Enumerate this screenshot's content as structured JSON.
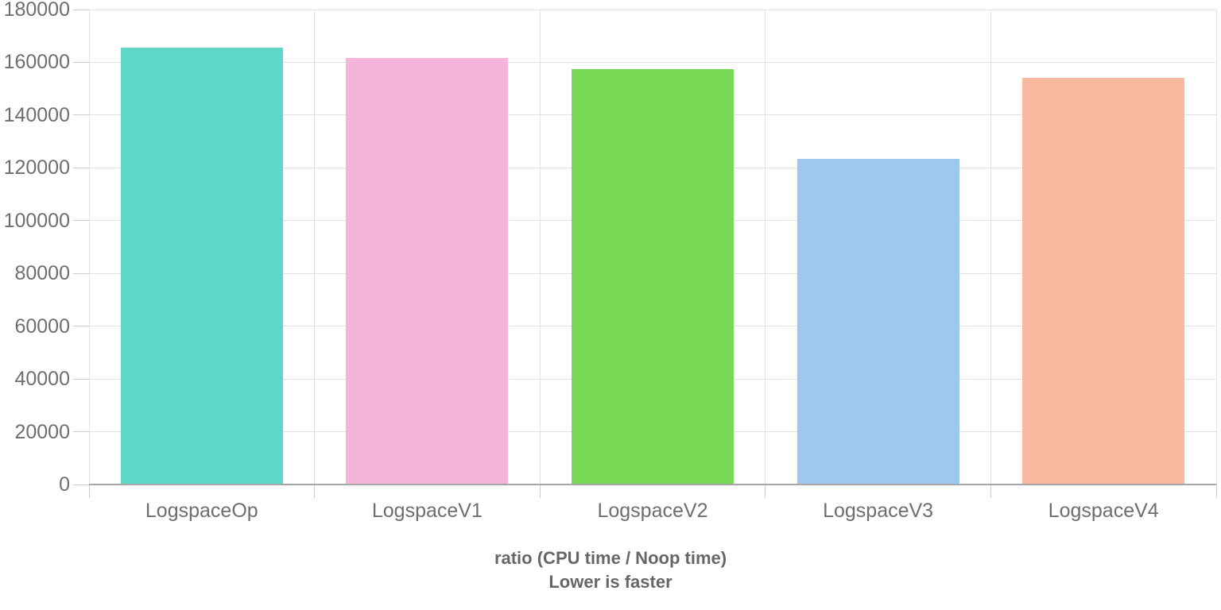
{
  "chart_data": {
    "type": "bar",
    "title": "ratio (CPU time / Noop time)",
    "subtitle": "Lower is faster",
    "categories": [
      "LogspaceOp",
      "LogspaceV1",
      "LogspaceV2",
      "LogspaceV3",
      "LogspaceV4"
    ],
    "values": [
      165600,
      161700,
      157500,
      123400,
      154000
    ],
    "bar_colors": [
      "#5ed8ca",
      "#f5b4d9",
      "#7ad957",
      "#9fc8ef",
      "#f6b89e"
    ],
    "ylim": [
      0,
      180000
    ],
    "ytick_step": 20000,
    "ytick_labels": [
      "0",
      "20000",
      "40000",
      "60000",
      "80000",
      "100000",
      "120000",
      "140000",
      "160000",
      "180000"
    ],
    "xlabel": "",
    "ylabel": "",
    "grid": true,
    "legend": "none",
    "style_colors": {
      "gridline": "#e2e2e2",
      "axis_line": "#a6a6a6",
      "tick_mark": "#cccccc",
      "tick_label": "#6e6e6e",
      "category_label": "#6e6e6e",
      "title": "#666666",
      "background": "#ffffff"
    }
  }
}
